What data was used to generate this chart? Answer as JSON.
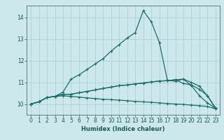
{
  "xlabel": "Humidex (Indice chaleur)",
  "bg_color": "#cce8ec",
  "grid_color": "#a8cdd4",
  "line_color": "#1a6e68",
  "xlim": [
    -0.5,
    23.5
  ],
  "ylim": [
    9.5,
    14.55
  ],
  "xticks": [
    0,
    1,
    2,
    3,
    4,
    5,
    6,
    7,
    8,
    9,
    10,
    11,
    12,
    13,
    14,
    15,
    16,
    17,
    18,
    19,
    20,
    21,
    22,
    23
  ],
  "yticks": [
    10,
    11,
    12,
    13,
    14
  ],
  "series": [
    [
      10.0,
      10.1,
      10.3,
      10.35,
      10.55,
      11.15,
      11.35,
      11.6,
      11.85,
      12.1,
      12.45,
      12.75,
      13.05,
      13.3,
      14.32,
      13.8,
      12.85,
      11.1,
      11.05,
      11.15,
      10.85,
      10.38,
      10.05,
      9.8
    ],
    [
      10.0,
      10.1,
      10.3,
      10.35,
      10.45,
      10.45,
      10.52,
      10.58,
      10.65,
      10.72,
      10.78,
      10.85,
      10.88,
      10.93,
      10.97,
      11.02,
      11.06,
      11.08,
      11.12,
      11.15,
      11.0,
      10.82,
      10.38,
      9.82
    ],
    [
      10.0,
      10.1,
      10.3,
      10.35,
      10.45,
      10.45,
      10.52,
      10.58,
      10.65,
      10.72,
      10.78,
      10.85,
      10.88,
      10.93,
      10.97,
      11.02,
      11.06,
      11.08,
      11.12,
      10.95,
      10.88,
      10.68,
      10.38,
      9.78
    ],
    [
      10.0,
      10.1,
      10.3,
      10.35,
      10.38,
      10.35,
      10.32,
      10.28,
      10.25,
      10.22,
      10.2,
      10.18,
      10.15,
      10.12,
      10.1,
      10.08,
      10.05,
      10.02,
      10.0,
      9.98,
      9.95,
      9.92,
      9.88,
      9.78
    ]
  ]
}
